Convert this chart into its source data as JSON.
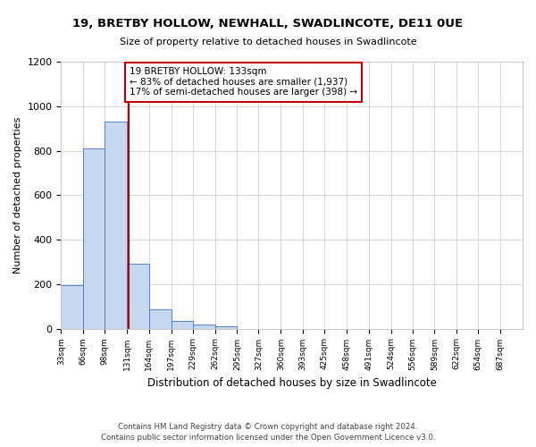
{
  "title": "19, BRETBY HOLLOW, NEWHALL, SWADLINCOTE, DE11 0UE",
  "subtitle": "Size of property relative to detached houses in Swadlincote",
  "xlabel": "Distribution of detached houses by size in Swadlincote",
  "ylabel": "Number of detached properties",
  "footnote1": "Contains HM Land Registry data © Crown copyright and database right 2024.",
  "footnote2": "Contains public sector information licensed under the Open Government Licence v3.0.",
  "bar_edges": [
    33,
    66,
    98,
    131,
    164,
    197,
    229,
    262,
    295,
    327,
    360,
    393,
    425,
    458,
    491,
    524,
    556,
    589,
    622,
    654,
    687,
    720
  ],
  "bar_heights": [
    196,
    810,
    931,
    293,
    87,
    36,
    17,
    10,
    0,
    0,
    0,
    0,
    0,
    0,
    0,
    0,
    0,
    0,
    0,
    0,
    0
  ],
  "bar_color": "#c6d9f0",
  "bar_edge_color": "#4472c4",
  "property_line_x": 133,
  "property_line_color": "#c00000",
  "annotation_line1": "19 BRETBY HOLLOW: 133sqm",
  "annotation_line2": "← 83% of detached houses are smaller (1,937)",
  "annotation_line3": "17% of semi-detached houses are larger (398) →",
  "annotation_box_color": "#c00000",
  "ylim": [
    0,
    1200
  ],
  "xlim": [
    33,
    720
  ],
  "bg_color": "#ffffff",
  "grid_color": "#c8c8c8",
  "yticks": [
    0,
    200,
    400,
    600,
    800,
    1000,
    1200
  ],
  "tick_labels": [
    "33sqm",
    "66sqm",
    "98sqm",
    "131sqm",
    "164sqm",
    "197sqm",
    "229sqm",
    "262sqm",
    "295sqm",
    "327sqm",
    "360sqm",
    "393sqm",
    "425sqm",
    "458sqm",
    "491sqm",
    "524sqm",
    "556sqm",
    "589sqm",
    "622sqm",
    "654sqm",
    "687sqm"
  ],
  "tick_positions": [
    33,
    66,
    98,
    131,
    164,
    197,
    229,
    262,
    295,
    327,
    360,
    393,
    425,
    458,
    491,
    524,
    556,
    589,
    622,
    654,
    687
  ]
}
